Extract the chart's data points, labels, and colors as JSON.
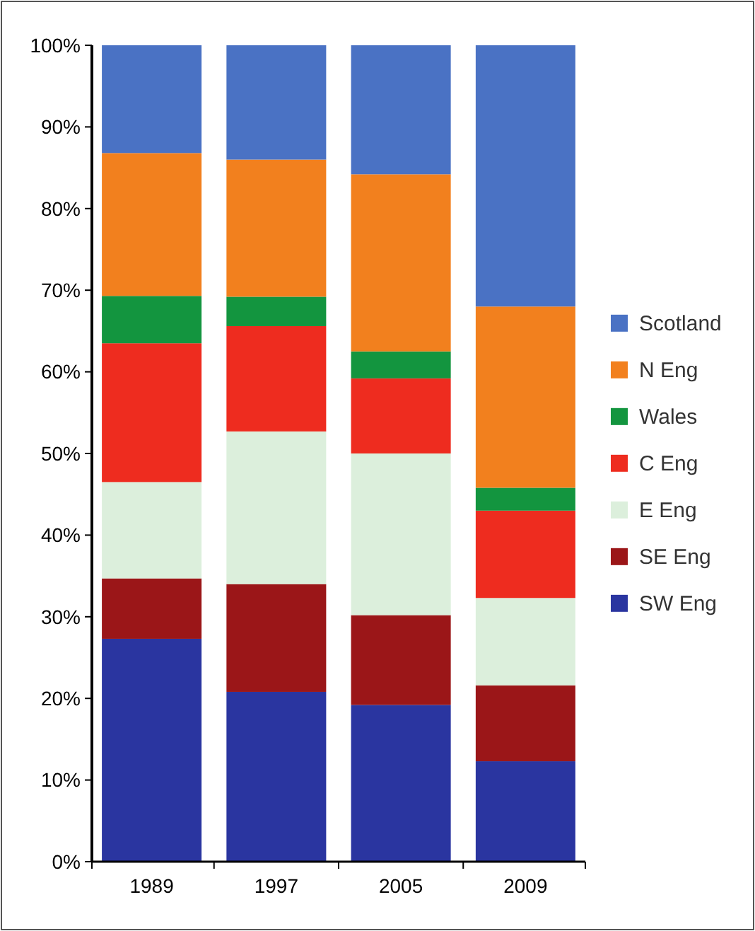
{
  "chart_data": {
    "type": "bar",
    "stacked": true,
    "categories": [
      "1989",
      "1997",
      "2005",
      "2009"
    ],
    "series": [
      {
        "name": "SW Eng",
        "color": "#2a35a0",
        "values": [
          27.3,
          20.8,
          19.2,
          12.3
        ]
      },
      {
        "name": "SE Eng",
        "color": "#9b1618",
        "values": [
          7.4,
          13.2,
          11,
          9.3
        ]
      },
      {
        "name": "E Eng",
        "color": "#dcefdc",
        "values": [
          11.8,
          18.7,
          19.8,
          10.7
        ]
      },
      {
        "name": "C Eng",
        "color": "#ee2c1f",
        "values": [
          17,
          12.9,
          9.2,
          10.7
        ]
      },
      {
        "name": "Wales",
        "color": "#13953f",
        "values": [
          5.8,
          3.6,
          3.3,
          2.8
        ]
      },
      {
        "name": "N Eng",
        "color": "#f2801e",
        "values": [
          17.5,
          16.8,
          21.7,
          22.2
        ]
      },
      {
        "name": "Scotland",
        "color": "#4a72c4",
        "values": [
          13.2,
          14,
          15.8,
          32
        ]
      }
    ],
    "ylim": [
      0,
      100
    ],
    "yticks": [
      {
        "value": 0,
        "label": "0%"
      },
      {
        "value": 10,
        "label": "10%"
      },
      {
        "value": 20,
        "label": "20%"
      },
      {
        "value": 30,
        "label": "30%"
      },
      {
        "value": 40,
        "label": "40%"
      },
      {
        "value": 50,
        "label": "50%"
      },
      {
        "value": 60,
        "label": "60%"
      },
      {
        "value": 70,
        "label": "70%"
      },
      {
        "value": 80,
        "label": "80%"
      },
      {
        "value": 90,
        "label": "90%"
      },
      {
        "value": 100,
        "label": "100%"
      }
    ],
    "grid": false,
    "legend": "right"
  }
}
